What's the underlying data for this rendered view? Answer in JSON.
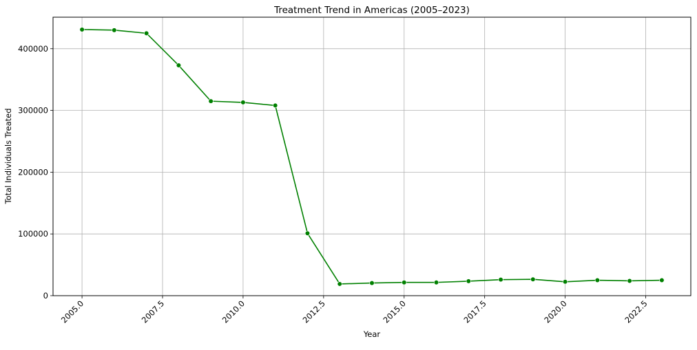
{
  "chart_data": {
    "type": "line",
    "title": "Treatment Trend in Americas (2005–2023)",
    "xlabel": "Year",
    "ylabel": "Total Individuals Treated",
    "xlim": [
      2004.1,
      2023.9
    ],
    "ylim": [
      0,
      451000
    ],
    "xticks": [
      2005.0,
      2007.5,
      2010.0,
      2012.5,
      2015.0,
      2017.5,
      2020.0,
      2022.5
    ],
    "xtick_labels": [
      "2005.0",
      "2007.5",
      "2010.0",
      "2012.5",
      "2015.0",
      "2017.5",
      "2020.0",
      "2022.5"
    ],
    "yticks": [
      0,
      100000,
      200000,
      300000,
      400000
    ],
    "ytick_labels": [
      "0",
      "100000",
      "200000",
      "300000",
      "400000"
    ],
    "grid": true,
    "series": [
      {
        "color": "#008000",
        "marker": "circle",
        "x": [
          2005,
          2006,
          2007,
          2008,
          2009,
          2010,
          2011,
          2012,
          2013,
          2014,
          2015,
          2016,
          2017,
          2018,
          2019,
          2020,
          2021,
          2022,
          2023
        ],
        "y": [
          431000,
          430000,
          425000,
          373000,
          315000,
          313000,
          308000,
          101000,
          19000,
          20500,
          21500,
          21500,
          23500,
          26000,
          26500,
          22500,
          25000,
          24000,
          25000
        ]
      }
    ]
  }
}
